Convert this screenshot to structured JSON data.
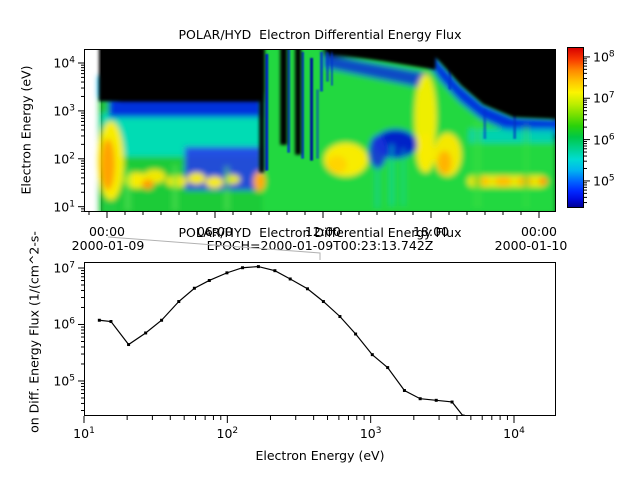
{
  "top_chart": {
    "title": "POLAR/HYD  Electron Differential Energy Flux",
    "ylabel": "Electron Energy (eV)",
    "y_ticks": [
      {
        "base": "10",
        "exp": "4",
        "log": 4
      },
      {
        "base": "10",
        "exp": "3",
        "log": 3
      },
      {
        "base": "10",
        "exp": "2",
        "log": 2
      },
      {
        "base": "10",
        "exp": "1",
        "log": 1
      }
    ],
    "time_ticks": [
      {
        "label": "00:00",
        "hour": 0
      },
      {
        "label": "06:00",
        "hour": 6
      },
      {
        "label": "12:00",
        "hour": 12
      },
      {
        "label": "18:00",
        "hour": 18
      },
      {
        "label": "00:00",
        "hour": 24
      }
    ],
    "date_left": "2000-01-09",
    "date_right": "2000-01-10",
    "colorbar_ticks": [
      {
        "base": "10",
        "exp": "8",
        "log": 8
      },
      {
        "base": "10",
        "exp": "7",
        "log": 7
      },
      {
        "base": "10",
        "exp": "6",
        "log": 6
      },
      {
        "base": "10",
        "exp": "5",
        "log": 5
      }
    ]
  },
  "bottom_chart": {
    "title": "POLAR/HYD  Electron Differential Energy Flux",
    "subtitle": "EPOCH=2000-01-09T00:23:13.742Z",
    "ylabel_visible": "on Diff. Energy Flux (1/(cm^2-s-",
    "xlabel": "Electron Energy (eV)",
    "x_ticks": [
      {
        "base": "10",
        "exp": "1",
        "log": 1
      },
      {
        "base": "10",
        "exp": "2",
        "log": 2
      },
      {
        "base": "10",
        "exp": "3",
        "log": 3
      },
      {
        "base": "10",
        "exp": "4",
        "log": 4
      }
    ],
    "y_ticks": [
      {
        "base": "10",
        "exp": "7",
        "log": 7
      },
      {
        "base": "10",
        "exp": "6",
        "log": 6
      },
      {
        "base": "10",
        "exp": "5",
        "log": 5
      }
    ]
  },
  "chart_data": [
    {
      "type": "heatmap",
      "title": "POLAR/HYD  Electron Differential Energy Flux",
      "x_axis": {
        "kind": "time",
        "tick_labels": [
          "00:00",
          "06:00",
          "12:00",
          "18:00",
          "00:00"
        ],
        "date_start": "2000-01-09",
        "date_end": "2000-01-10"
      },
      "y_axis": {
        "label": "Electron Energy (eV)",
        "scale": "log",
        "range_eV": [
          10,
          20000
        ],
        "tick_values": [
          10,
          100,
          1000,
          10000
        ]
      },
      "color_axis": {
        "scale": "log",
        "range": [
          22000.0,
          170000000.0
        ],
        "tick_values": [
          100000.0,
          1000000.0,
          10000000.0,
          100000000.0
        ],
        "colormap": "blue-cyan-green-yellow-orange-red (low to high)"
      },
      "legend_position": "right colorbar",
      "grid": false,
      "description": "Electron energy-time spectrogram. Black = below threshold. Broad green band below ~1 keV all day with cyan/blue upper fringe; yellow-orange enhancement near 100 eV at ~00:00-02:00 and scattered yellow spots 30-100 eV until ~06:00; intense vertical structures reaching 10 keV from ~09:00-18:00 with bright yellow columns near 12:30 and 17:30; after ~19:00 flux confined below ~1 keV with blue fringe and dashed yellow band near 40-70 eV."
    },
    {
      "type": "line",
      "title": "POLAR/HYD  Electron Differential Energy Flux",
      "subtitle": "EPOCH=2000-01-09T00:23:13.742Z",
      "xlabel": "Electron Energy (eV)",
      "ylabel": "Electron Diff. Energy Flux (1/(cm^2-s-sr)) [partially clipped in view]",
      "x_scale": "log",
      "y_scale": "log",
      "marker": "square",
      "line_color": "#000000",
      "xlim_log10": [
        1.0,
        4.293
      ],
      "ylim_log10": [
        4.38,
        7.106
      ],
      "x": [
        12.6,
        15.2,
        20.2,
        26.6,
        34.4,
        45.4,
        58.4,
        74.3,
        98.7,
        127,
        164,
        214,
        274,
        362,
        468,
        611,
        787,
        1030,
        1320,
        1730,
        2230,
        2890,
        3730,
        4460
      ],
      "y": [
        1200000.0,
        1140000.0,
        440000.0,
        710000.0,
        1200000.0,
        2600000.0,
        4500000.0,
        6200000.0,
        8500000.0,
        10500000.0,
        11000000.0,
        9300000.0,
        6600000.0,
        4400000.0,
        2600000.0,
        1400000.0,
        680000.0,
        290000.0,
        170000.0,
        66000.0,
        47000.0,
        44000.0,
        41000.0,
        23000.0
      ]
    }
  ],
  "slice_indicator": {
    "note": "gray connector from 00:23 position on time axis to spectrum title"
  }
}
